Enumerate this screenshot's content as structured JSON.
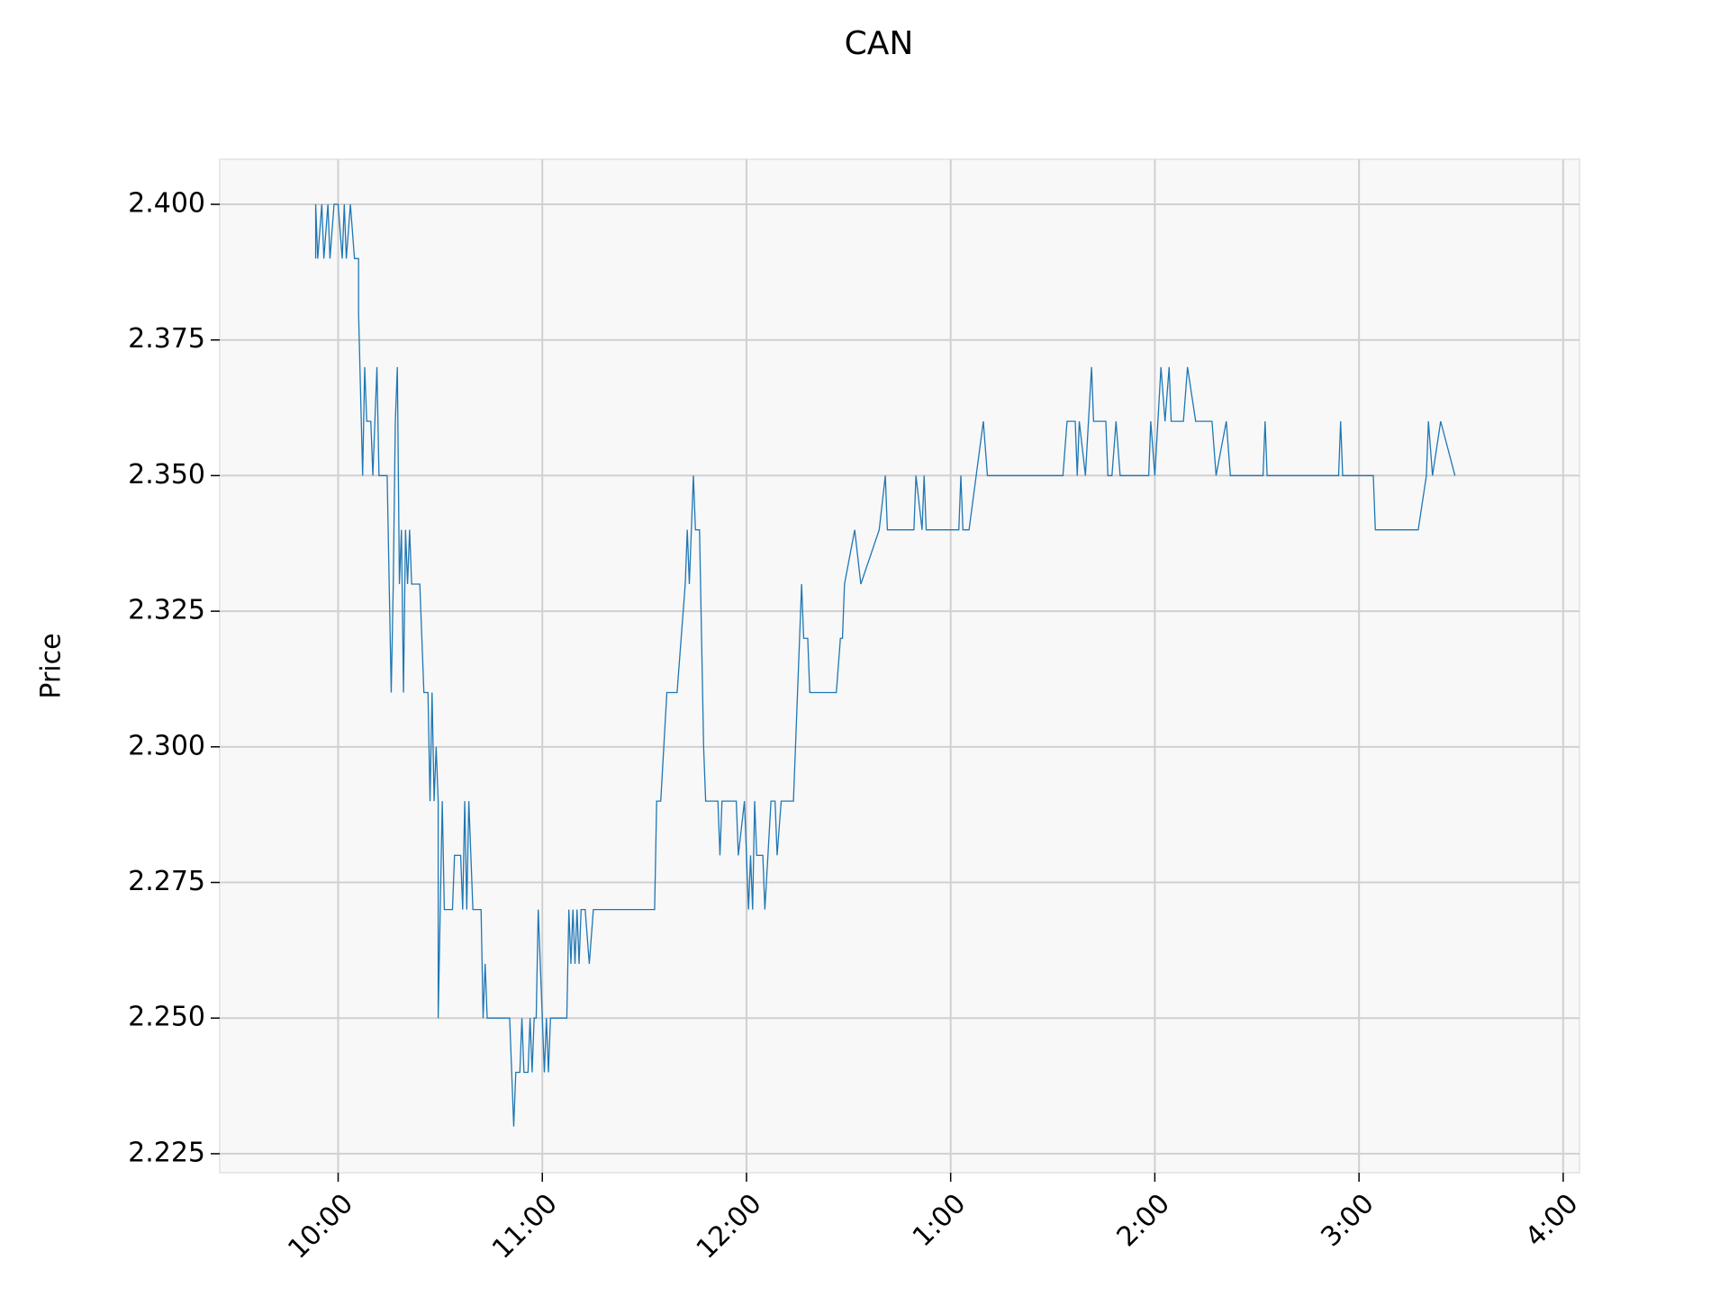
{
  "chart_data": {
    "type": "line",
    "title": "CAN",
    "y_label": "Price",
    "x": [
      9.89,
      9.89,
      9.9,
      9.92,
      9.93,
      9.95,
      9.96,
      9.98,
      10.0,
      10.02,
      10.03,
      10.04,
      10.06,
      10.08,
      10.1,
      10.1,
      10.12,
      10.13,
      10.14,
      10.16,
      10.17,
      10.18,
      10.19,
      10.2,
      10.24,
      10.25,
      10.26,
      10.27,
      10.28,
      10.29,
      10.3,
      10.31,
      10.32,
      10.33,
      10.34,
      10.35,
      10.36,
      10.4,
      10.42,
      10.44,
      10.45,
      10.46,
      10.47,
      10.48,
      10.49,
      10.49,
      10.51,
      10.52,
      10.56,
      10.57,
      10.6,
      10.61,
      10.62,
      10.63,
      10.64,
      10.65,
      10.66,
      10.7,
      10.71,
      10.72,
      10.73,
      10.84,
      10.85,
      10.86,
      10.87,
      10.89,
      10.9,
      10.91,
      10.93,
      10.94,
      10.95,
      10.96,
      10.97,
      10.98,
      10.99,
      11.0,
      11.01,
      11.02,
      11.03,
      11.04,
      11.12,
      11.13,
      11.14,
      11.15,
      11.16,
      11.17,
      11.18,
      11.19,
      11.21,
      11.23,
      11.25,
      11.55,
      11.56,
      11.58,
      11.61,
      11.66,
      11.7,
      11.71,
      11.72,
      11.73,
      11.74,
      11.75,
      11.77,
      11.78,
      11.79,
      11.8,
      11.86,
      11.87,
      11.88,
      11.95,
      11.96,
      11.99,
      12.0,
      12.01,
      12.02,
      12.03,
      12.04,
      12.05,
      12.08,
      12.09,
      12.12,
      12.14,
      12.15,
      12.17,
      12.23,
      12.26,
      12.27,
      12.28,
      12.3,
      12.31,
      12.44,
      12.46,
      12.47,
      12.48,
      12.53,
      12.56,
      12.65,
      12.68,
      12.69,
      12.82,
      12.83,
      12.86,
      12.87,
      12.88,
      13.04,
      13.05,
      13.06,
      13.09,
      13.16,
      13.18,
      13.55,
      13.57,
      13.61,
      13.62,
      13.63,
      13.66,
      13.69,
      13.7,
      13.76,
      13.77,
      13.79,
      13.81,
      13.83,
      13.97,
      13.98,
      14.0,
      14.03,
      14.05,
      14.07,
      14.08,
      14.14,
      14.16,
      14.2,
      14.28,
      14.3,
      14.35,
      14.37,
      14.53,
      14.54,
      14.55,
      14.9,
      14.91,
      14.92,
      15.07,
      15.08,
      15.29,
      15.33,
      15.34,
      15.36,
      15.4,
      15.47
    ],
    "series": [
      {
        "name": "Price",
        "color": "#1f77b4",
        "values": [
          2.39,
          2.4,
          2.39,
          2.4,
          2.39,
          2.4,
          2.39,
          2.4,
          2.4,
          2.39,
          2.4,
          2.39,
          2.4,
          2.39,
          2.39,
          2.38,
          2.35,
          2.37,
          2.36,
          2.36,
          2.35,
          2.36,
          2.37,
          2.35,
          2.35,
          2.33,
          2.31,
          2.33,
          2.36,
          2.37,
          2.33,
          2.34,
          2.31,
          2.34,
          2.33,
          2.34,
          2.33,
          2.33,
          2.31,
          2.31,
          2.29,
          2.31,
          2.29,
          2.3,
          2.29,
          2.25,
          2.29,
          2.27,
          2.27,
          2.28,
          2.28,
          2.27,
          2.29,
          2.27,
          2.29,
          2.28,
          2.27,
          2.27,
          2.25,
          2.26,
          2.25,
          2.25,
          2.24,
          2.23,
          2.24,
          2.24,
          2.25,
          2.24,
          2.24,
          2.25,
          2.24,
          2.25,
          2.25,
          2.27,
          2.26,
          2.25,
          2.24,
          2.25,
          2.24,
          2.25,
          2.25,
          2.27,
          2.26,
          2.27,
          2.26,
          2.27,
          2.26,
          2.27,
          2.27,
          2.26,
          2.27,
          2.27,
          2.29,
          2.29,
          2.31,
          2.31,
          2.33,
          2.34,
          2.33,
          2.34,
          2.35,
          2.34,
          2.34,
          2.32,
          2.3,
          2.29,
          2.29,
          2.28,
          2.29,
          2.29,
          2.28,
          2.29,
          2.28,
          2.27,
          2.28,
          2.27,
          2.29,
          2.28,
          2.28,
          2.27,
          2.29,
          2.29,
          2.28,
          2.29,
          2.29,
          2.32,
          2.33,
          2.32,
          2.32,
          2.31,
          2.31,
          2.32,
          2.32,
          2.33,
          2.34,
          2.33,
          2.34,
          2.35,
          2.34,
          2.34,
          2.35,
          2.34,
          2.35,
          2.34,
          2.34,
          2.35,
          2.34,
          2.34,
          2.36,
          2.35,
          2.35,
          2.36,
          2.36,
          2.35,
          2.36,
          2.35,
          2.37,
          2.36,
          2.36,
          2.35,
          2.35,
          2.36,
          2.35,
          2.35,
          2.36,
          2.35,
          2.37,
          2.36,
          2.37,
          2.36,
          2.36,
          2.37,
          2.36,
          2.36,
          2.35,
          2.36,
          2.35,
          2.35,
          2.36,
          2.35,
          2.35,
          2.36,
          2.35,
          2.35,
          2.34,
          2.34,
          2.35,
          2.36,
          2.35,
          2.36,
          2.35
        ]
      }
    ],
    "xlim": [
      9.42,
      16.08
    ],
    "ylim": [
      2.2215,
      2.4083
    ],
    "xticks": [
      {
        "value": 10,
        "label": "10:00"
      },
      {
        "value": 11,
        "label": "11:00"
      },
      {
        "value": 12,
        "label": "12:00"
      },
      {
        "value": 13,
        "label": "1:00"
      },
      {
        "value": 14,
        "label": "2:00"
      },
      {
        "value": 15,
        "label": "3:00"
      },
      {
        "value": 16,
        "label": "4:00"
      }
    ],
    "yticks": [
      {
        "value": 2.225,
        "label": "2.225"
      },
      {
        "value": 2.25,
        "label": "2.250"
      },
      {
        "value": 2.275,
        "label": "2.275"
      },
      {
        "value": 2.3,
        "label": "2.300"
      },
      {
        "value": 2.325,
        "label": "2.325"
      },
      {
        "value": 2.35,
        "label": "2.350"
      },
      {
        "value": 2.375,
        "label": "2.375"
      },
      {
        "value": 2.4,
        "label": "2.400"
      }
    ],
    "grid": true
  }
}
